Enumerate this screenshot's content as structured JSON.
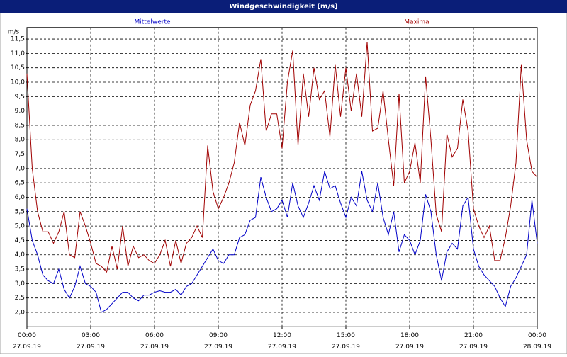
{
  "chart_data": {
    "type": "line",
    "title": "Windgeschwindigkeit [m/s]",
    "y_unit": "m/s",
    "x": [
      0,
      0.25,
      0.5,
      0.75,
      1,
      1.25,
      1.5,
      1.75,
      2,
      2.25,
      2.5,
      2.75,
      3,
      3.25,
      3.5,
      3.75,
      4,
      4.25,
      4.5,
      4.75,
      5,
      5.25,
      5.5,
      5.75,
      6,
      6.25,
      6.5,
      6.75,
      7,
      7.25,
      7.5,
      7.75,
      8,
      8.25,
      8.5,
      8.75,
      9,
      9.25,
      9.5,
      9.75,
      10,
      10.25,
      10.5,
      10.75,
      11,
      11.25,
      11.5,
      11.75,
      12,
      12.25,
      12.5,
      12.75,
      13,
      13.25,
      13.5,
      13.75,
      14,
      14.25,
      14.5,
      14.75,
      15,
      15.25,
      15.5,
      15.75,
      16,
      16.25,
      16.5,
      16.75,
      17,
      17.25,
      17.5,
      17.75,
      18,
      18.25,
      18.5,
      18.75,
      19,
      19.25,
      19.5,
      19.75,
      20,
      20.25,
      20.5,
      20.75,
      21,
      21.25,
      21.5,
      21.75,
      22,
      22.25,
      22.5,
      22.75,
      23,
      23.25,
      23.5,
      23.75,
      24
    ],
    "series": [
      {
        "name": "Mittelwerte",
        "color": "#0000c8",
        "values": [
          5.6,
          4.5,
          4.0,
          3.3,
          3.1,
          3.0,
          3.5,
          2.8,
          2.5,
          2.9,
          3.6,
          3.0,
          2.9,
          2.7,
          2.0,
          2.1,
          2.3,
          2.5,
          2.7,
          2.7,
          2.5,
          2.4,
          2.6,
          2.6,
          2.7,
          2.75,
          2.7,
          2.7,
          2.8,
          2.6,
          2.9,
          3.0,
          3.3,
          3.6,
          3.9,
          4.2,
          3.8,
          3.7,
          4.0,
          4.0,
          4.6,
          4.7,
          5.2,
          5.3,
          6.7,
          6.0,
          5.5,
          5.6,
          5.9,
          5.3,
          6.5,
          5.7,
          5.3,
          5.8,
          6.4,
          5.9,
          6.9,
          6.3,
          6.4,
          5.8,
          5.3,
          6.0,
          5.7,
          6.9,
          5.9,
          5.5,
          6.5,
          5.3,
          4.7,
          5.5,
          4.1,
          4.7,
          4.5,
          4.0,
          4.5,
          6.1,
          5.5,
          4.0,
          3.1,
          4.1,
          4.4,
          4.2,
          5.7,
          6.0,
          4.2,
          3.6,
          3.3,
          3.1,
          2.9,
          2.5,
          2.2,
          2.9,
          3.2,
          3.6,
          4.0,
          5.9,
          4.4
        ]
      },
      {
        "name": "Maxima",
        "color": "#a00000",
        "values": [
          10.3,
          7.0,
          5.5,
          4.8,
          4.8,
          4.4,
          4.8,
          5.5,
          4.0,
          3.9,
          5.5,
          5.0,
          4.4,
          3.7,
          3.6,
          3.4,
          4.3,
          3.5,
          5.0,
          3.6,
          4.3,
          3.9,
          4.0,
          3.8,
          3.7,
          4.0,
          4.5,
          3.6,
          4.5,
          3.7,
          4.4,
          4.6,
          5.0,
          4.6,
          7.8,
          6.2,
          5.6,
          6.0,
          6.5,
          7.2,
          8.6,
          7.8,
          9.2,
          9.7,
          10.8,
          8.3,
          8.9,
          8.9,
          7.7,
          10.0,
          11.1,
          7.8,
          10.3,
          8.8,
          10.5,
          9.4,
          9.7,
          8.1,
          10.6,
          8.8,
          10.5,
          9.0,
          10.3,
          8.8,
          11.4,
          8.3,
          8.4,
          9.7,
          8.0,
          6.4,
          9.6,
          6.5,
          6.9,
          7.9,
          6.5,
          10.2,
          8.0,
          5.4,
          4.8,
          8.2,
          7.4,
          7.7,
          9.4,
          8.3,
          5.6,
          5.0,
          4.6,
          5.0,
          3.8,
          3.8,
          4.6,
          5.7,
          7.2,
          10.6,
          8.0,
          6.9,
          6.7
        ]
      }
    ],
    "xlim": [
      0,
      24
    ],
    "xticks": [
      {
        "value": 0,
        "label": "00:00",
        "sublabel": "27.09.19"
      },
      {
        "value": 3,
        "label": "03:00",
        "sublabel": "27.09.19"
      },
      {
        "value": 6,
        "label": "06:00",
        "sublabel": "27.09.19"
      },
      {
        "value": 9,
        "label": "09:00",
        "sublabel": "27.09.19"
      },
      {
        "value": 12,
        "label": "12:00",
        "sublabel": "27.09.19"
      },
      {
        "value": 15,
        "label": "15:00",
        "sublabel": "27.09.19"
      },
      {
        "value": 18,
        "label": "18:00",
        "sublabel": "27.09.19"
      },
      {
        "value": 21,
        "label": "21:00",
        "sublabel": "27.09.19"
      },
      {
        "value": 24,
        "label": "00:00",
        "sublabel": "28.09.19"
      }
    ],
    "ylim": [
      1.5,
      11.9
    ],
    "yticks": [
      {
        "value": 2,
        "label": "2,0"
      },
      {
        "value": 2.5,
        "label": "2,5"
      },
      {
        "value": 3,
        "label": "3,0"
      },
      {
        "value": 3.5,
        "label": "3,5"
      },
      {
        "value": 4,
        "label": "4,0"
      },
      {
        "value": 4.5,
        "label": "4,5"
      },
      {
        "value": 5,
        "label": "5,0"
      },
      {
        "value": 5.5,
        "label": "5,5"
      },
      {
        "value": 6,
        "label": "6,0"
      },
      {
        "value": 6.5,
        "label": "6,5"
      },
      {
        "value": 7,
        "label": "7,0"
      },
      {
        "value": 7.5,
        "label": "7,5"
      },
      {
        "value": 8,
        "label": "8,0"
      },
      {
        "value": 8.5,
        "label": "8,5"
      },
      {
        "value": 9,
        "label": "9,0"
      },
      {
        "value": 9.5,
        "label": "9,5"
      },
      {
        "value": 10,
        "label": "10,0"
      },
      {
        "value": 10.5,
        "label": "10,5"
      },
      {
        "value": 11,
        "label": "11,0"
      },
      {
        "value": 11.5,
        "label": "11,5"
      }
    ],
    "grid": true
  }
}
